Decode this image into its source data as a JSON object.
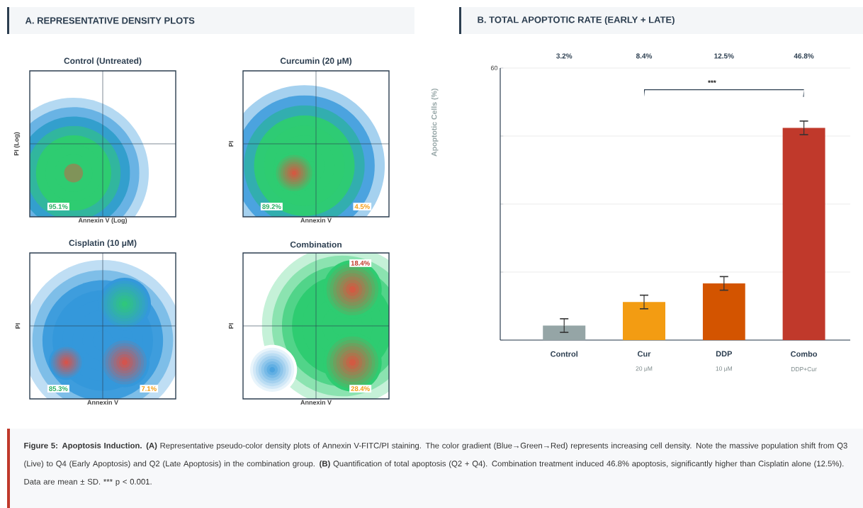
{
  "chart_data": [
    {
      "type": "other",
      "title": "A. REPRESENTATIVE DENSITY PLOTS"
    },
    {
      "type": "other",
      "title": "Control (Untreated)",
      "xlabel": "Annexin V (Log)",
      "ylabel": "PI (Log)",
      "annotations": [
        "95.1%"
      ]
    },
    {
      "type": "other",
      "title": "Curcumin (20 μM)",
      "xlabel": "Annexin V",
      "ylabel": "PI",
      "annotations": [
        "89.2%",
        "4.5%"
      ]
    },
    {
      "type": "other",
      "title": "Cisplatin (10 μM)",
      "xlabel": "Annexin V",
      "ylabel": "PI",
      "annotations": [
        "85.3%",
        "7.1%"
      ]
    },
    {
      "type": "other",
      "title": "Combination",
      "xlabel": "Annexin V",
      "ylabel": "PI",
      "annotations": [
        "18.4%",
        "28.4%"
      ]
    },
    {
      "type": "bar",
      "title": "B. TOTAL APOPTOTIC RATE (EARLY + LATE)",
      "ylabel": "Apoptotic Cells (%)",
      "categories": [
        "Control",
        "Cur",
        "DDP",
        "Combo"
      ],
      "values": [
        3.2,
        8.4,
        12.5,
        46.8
      ],
      "errors": [
        1.5,
        1.5,
        1.5,
        1.5
      ],
      "value_labels": [
        "3.2%",
        "8.4%",
        "12.5%",
        "46.8%"
      ],
      "colors": [
        "#95a5a6",
        "#f39c12",
        "#d35400",
        "#c0392b"
      ],
      "ylim": [
        0,
        60
      ],
      "yticks": [
        {
          "value": 0,
          "label": null
        },
        {
          "value": 15,
          "label": null
        },
        {
          "value": 30,
          "label": null
        },
        {
          "value": 45,
          "label": null
        },
        60
      ],
      "grid": "y",
      "annotations": [
        "20 μM",
        "10 μM",
        "DDP+Cur",
        "***",
        "**Figure 5: Apoptosis Induction. (A)** Representative pseudo-color density plots of Annexin V-FITC/PI staining. The color gradient (Blue→Green→Red) represents increasing cell density. Note the massive population shift from Q3 (Live) to Q4 (Early Apoptosis) and Q2 (Late Apoptosis) in the combination group. **(B)** Quantification of total apoptosis (Q2 + Q4). Combination treatment induced 46.8% apoptosis, significantly higher than Cisplatin alone (12.5%). Data are mean ± SD. *** p < 0.001."
      ]
    }
  ]
}
